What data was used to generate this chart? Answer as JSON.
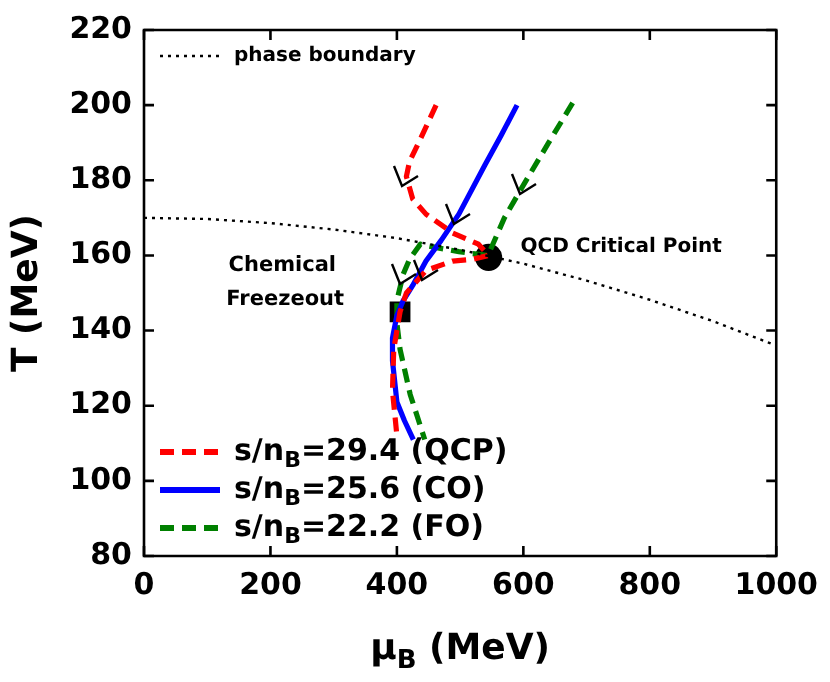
{
  "chart_data": {
    "type": "line",
    "xlabel": "μ$_{B}$ (MeV)",
    "ylabel": "T (MeV)",
    "xlim": [
      0,
      1000
    ],
    "xticks": [
      0,
      200,
      400,
      600,
      800,
      1000
    ],
    "ylim": [
      80,
      220
    ],
    "yticks": [
      80,
      100,
      120,
      140,
      160,
      180,
      200,
      220
    ],
    "grid": false,
    "legend": "bottom left",
    "marker": "none",
    "series": [
      {
        "name": "phase boundary",
        "color": "#000000",
        "line_style": "dotted",
        "x": [
          0,
          100,
          200,
          300,
          400,
          500,
          600,
          700,
          800,
          900,
          1000
        ],
        "values": [
          170,
          169.7,
          168.6,
          166.9,
          164.6,
          161.5,
          157.8,
          153.3,
          148.2,
          142.5,
          136
        ]
      },
      {
        "name": "s/n$_{B}$=29.4 (QCP)",
        "color": "#ff0000",
        "line_style": "dashed",
        "x": [
          462,
          440,
          420,
          415,
          425,
          446,
          488,
          529,
          545,
          520,
          488,
          446,
          415,
          405,
          395,
          393,
          400
        ],
        "values": [
          200,
          192,
          185,
          181,
          175,
          171,
          166,
          163,
          160,
          159,
          158.5,
          156,
          150,
          145,
          135,
          124,
          112
        ]
      },
      {
        "name": "s/n$_{B}$=25.6 (CO)",
        "color": "#0000ff",
        "line_style": "solid",
        "x": [
          590,
          565,
          539,
          498,
          470,
          446,
          425,
          410,
          400,
          393,
          393,
          400,
          412,
          426
        ],
        "values": [
          200,
          192,
          184,
          171,
          164,
          158.5,
          152,
          148,
          144,
          138,
          132,
          121,
          116,
          111
        ]
      },
      {
        "name": "s/n$_{B}$=22.2 (FO)",
        "color": "#008000",
        "line_style": "dashed",
        "x": [
          678,
          640,
          601,
          570,
          544,
          520,
          498,
          465,
          437,
          420,
          410,
          400,
          400,
          405,
          421,
          444
        ],
        "values": [
          200.6,
          190,
          179,
          170,
          160,
          160.5,
          161,
          162,
          163,
          159,
          155,
          148,
          142,
          135,
          123,
          111
        ]
      },
      {
        "type": "scatter",
        "color": "#000000",
        "marker": "circle",
        "x": [
          545
        ],
        "values": [
          159.5
        ]
      },
      {
        "type": "scatter",
        "color": "#000000",
        "marker": "square",
        "x": [
          405
        ],
        "values": [
          145
        ]
      }
    ],
    "annotations": [
      {
        "text": "QCD Critical Point",
        "x": 545,
        "y": 159.5
      },
      {
        "text": "Chemical Freezeout",
        "x": 405,
        "y": 145
      }
    ]
  }
}
